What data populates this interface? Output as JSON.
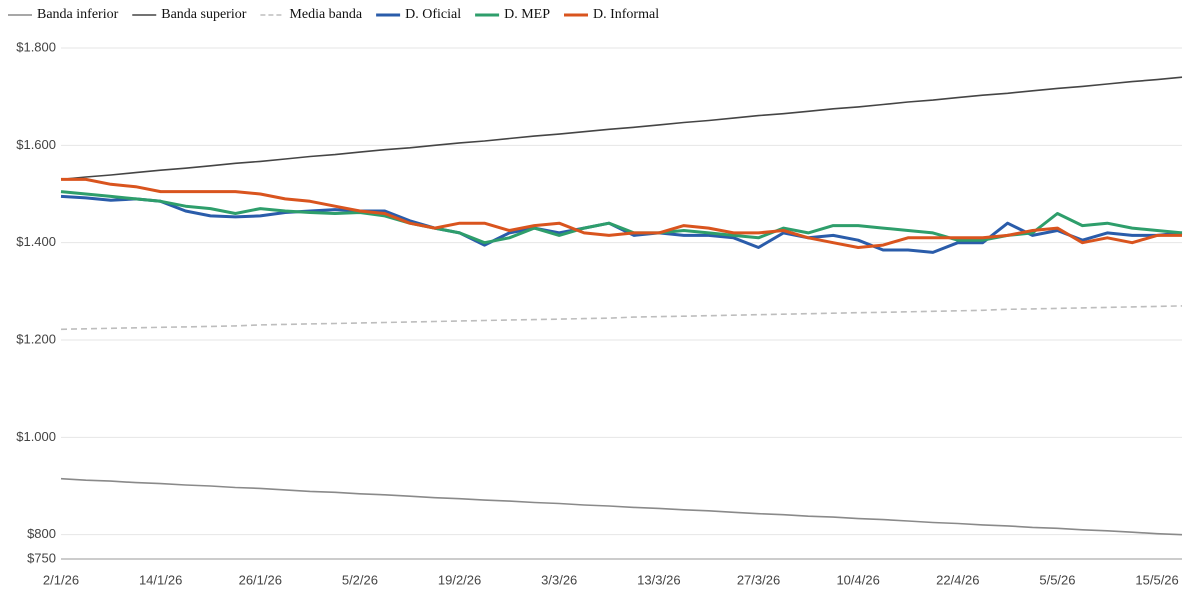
{
  "chart_data": {
    "type": "line",
    "categories": [
      "2/1/26",
      null,
      null,
      null,
      "14/1/26",
      null,
      null,
      null,
      "26/1/26",
      null,
      null,
      null,
      "5/2/26",
      null,
      null,
      null,
      "19/2/26",
      null,
      null,
      null,
      "3/3/26",
      null,
      null,
      null,
      "13/3/26",
      null,
      null,
      null,
      "27/3/26",
      null,
      null,
      null,
      "10/4/26",
      null,
      null,
      null,
      "22/4/26",
      null,
      null,
      null,
      "5/5/26",
      null,
      null,
      null,
      "15/5/26",
      null
    ],
    "series": [
      {
        "name": "Banda inferior",
        "color": "#8a8a8a",
        "dash": false,
        "values": [
          915,
          912,
          910,
          907,
          905,
          902,
          900,
          897,
          895,
          892,
          889,
          887,
          884,
          882,
          879,
          876,
          874,
          871,
          869,
          866,
          864,
          861,
          859,
          856,
          854,
          851,
          849,
          846,
          843,
          841,
          838,
          836,
          833,
          831,
          828,
          825,
          823,
          820,
          818,
          815,
          813,
          810,
          808,
          805,
          802,
          800
        ]
      },
      {
        "name": "Banda superior",
        "color": "#454545",
        "dash": false,
        "values": [
          1530,
          1535,
          1539,
          1544,
          1549,
          1553,
          1558,
          1563,
          1567,
          1572,
          1577,
          1581,
          1586,
          1591,
          1595,
          1600,
          1605,
          1609,
          1614,
          1619,
          1623,
          1628,
          1633,
          1637,
          1642,
          1647,
          1651,
          1656,
          1661,
          1665,
          1670,
          1675,
          1679,
          1684,
          1689,
          1693,
          1698,
          1703,
          1707,
          1712,
          1717,
          1721,
          1726,
          1731,
          1735,
          1740
        ]
      },
      {
        "name": "Media banda",
        "color": "#bdbdbd",
        "dash": true,
        "values": [
          1222,
          1223,
          1224,
          1225,
          1226,
          1227,
          1228,
          1229,
          1231,
          1232,
          1233,
          1234,
          1235,
          1236,
          1237,
          1238,
          1239,
          1240,
          1241,
          1242,
          1243,
          1244,
          1245,
          1247,
          1248,
          1249,
          1250,
          1251,
          1252,
          1253,
          1254,
          1255,
          1256,
          1257,
          1258,
          1259,
          1260,
          1261,
          1263,
          1264,
          1265,
          1266,
          1267,
          1268,
          1269,
          1270
        ]
      },
      {
        "name": "D. Oficial",
        "color": "#2a5caa",
        "dash": false,
        "values": [
          1495,
          1492,
          1487,
          1490,
          1485,
          1465,
          1455,
          1453,
          1455,
          1462,
          1465,
          1468,
          1465,
          1465,
          1445,
          1430,
          1420,
          1395,
          1420,
          1430,
          1420,
          1430,
          1440,
          1415,
          1420,
          1415,
          1415,
          1410,
          1390,
          1420,
          1410,
          1415,
          1405,
          1385,
          1385,
          1380,
          1400,
          1400,
          1440,
          1415,
          1425,
          1405,
          1420,
          1415,
          1415,
          1420
        ]
      },
      {
        "name": "D. MEP",
        "color": "#2e9e6b",
        "dash": false,
        "values": [
          1505,
          1500,
          1495,
          1490,
          1485,
          1475,
          1470,
          1460,
          1470,
          1465,
          1462,
          1460,
          1462,
          1455,
          1440,
          1430,
          1420,
          1400,
          1410,
          1430,
          1415,
          1430,
          1440,
          1420,
          1420,
          1425,
          1420,
          1415,
          1410,
          1430,
          1420,
          1435,
          1435,
          1430,
          1425,
          1420,
          1405,
          1405,
          1415,
          1420,
          1460,
          1435,
          1440,
          1430,
          1425,
          1420
        ]
      },
      {
        "name": "D. Informal",
        "color": "#d9541e",
        "dash": false,
        "values": [
          1530,
          1530,
          1520,
          1515,
          1505,
          1505,
          1505,
          1505,
          1500,
          1490,
          1485,
          1475,
          1465,
          1460,
          1440,
          1430,
          1440,
          1440,
          1425,
          1435,
          1440,
          1420,
          1415,
          1420,
          1420,
          1435,
          1430,
          1420,
          1420,
          1425,
          1410,
          1400,
          1390,
          1395,
          1410,
          1410,
          1410,
          1410,
          1415,
          1425,
          1430,
          1400,
          1410,
          1400,
          1415,
          1415
        ]
      }
    ],
    "ylim": [
      750,
      1800
    ],
    "yticks": [
      {
        "value": 750,
        "label": "$750"
      },
      {
        "value": 800,
        "label": "$800"
      },
      {
        "value": 1000,
        "label": "$1.000"
      },
      {
        "value": 1200,
        "label": "$1.200"
      },
      {
        "value": 1400,
        "label": "$1.400"
      },
      {
        "value": 1600,
        "label": "$1.600"
      },
      {
        "value": 1800,
        "label": "$1.800"
      }
    ],
    "grid": true,
    "legend": "top"
  }
}
